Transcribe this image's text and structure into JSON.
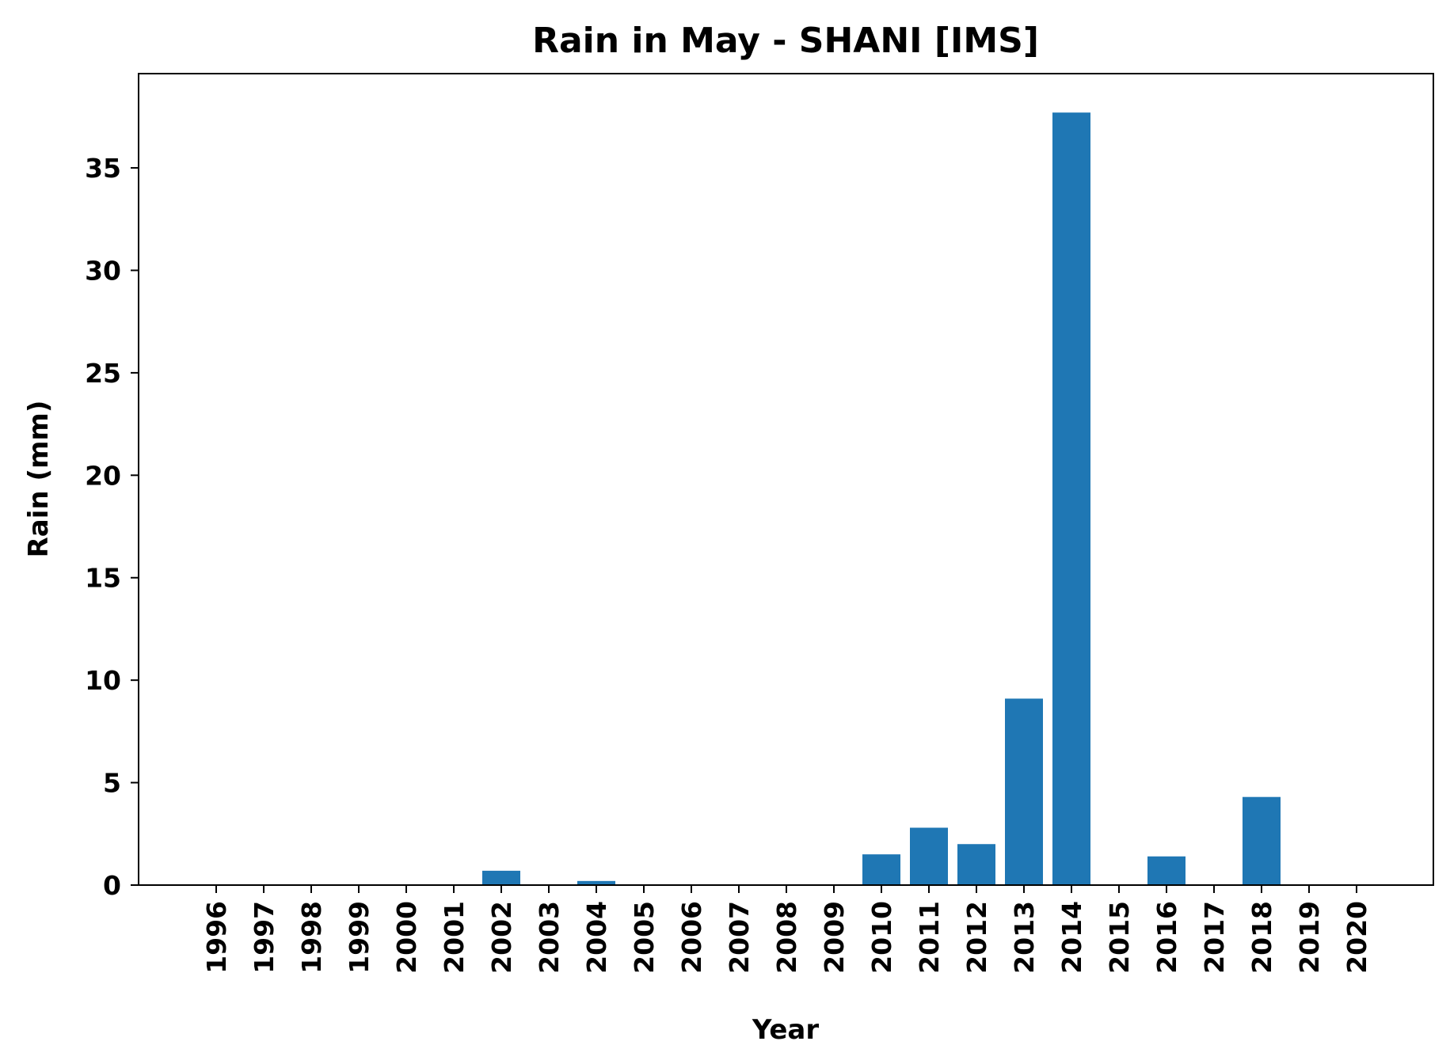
{
  "chart_data": {
    "type": "bar",
    "title": "Rain in May - SHANI [IMS]",
    "xlabel": "Year",
    "ylabel": "Rain (mm)",
    "categories": [
      "1996",
      "1997",
      "1998",
      "1999",
      "2000",
      "2001",
      "2002",
      "2003",
      "2004",
      "2005",
      "2006",
      "2007",
      "2008",
      "2009",
      "2010",
      "2011",
      "2012",
      "2013",
      "2014",
      "2015",
      "2016",
      "2017",
      "2018",
      "2019",
      "2020"
    ],
    "values": [
      0,
      0,
      0,
      0,
      0,
      0,
      0.7,
      0,
      0.2,
      0,
      0,
      0,
      0,
      0,
      1.5,
      2.8,
      2.0,
      9.1,
      37.7,
      0,
      1.4,
      0,
      4.3,
      0,
      0
    ],
    "ylim": [
      0,
      39.6
    ],
    "yticks": [
      0,
      5,
      10,
      15,
      20,
      25,
      30,
      35
    ],
    "bar_color": "#1f77b4",
    "grid": false,
    "legend": "none"
  }
}
